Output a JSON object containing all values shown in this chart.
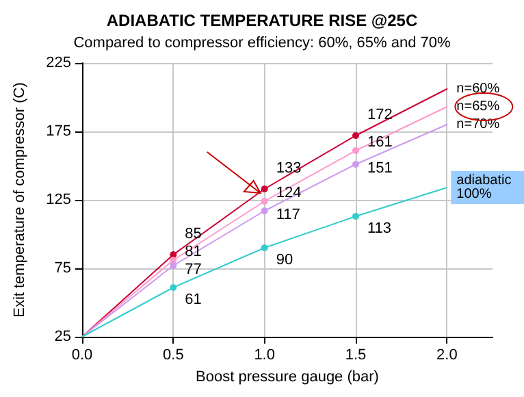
{
  "chart_data": {
    "type": "line",
    "title": "ADIABATIC TEMPERATURE RISE @25C",
    "subtitle": "Compared to compressor efficiency: 60%, 65% and 70%",
    "xlabel": "Boost pressure gauge (bar)",
    "ylabel": "Exit temperature of compressor (C)",
    "x": [
      0,
      0.5,
      1,
      1.5,
      2
    ],
    "series": [
      {
        "name": "n=60%",
        "color": "#cc0033",
        "values": [
          25,
          85,
          133,
          172,
          206
        ],
        "value_labels": [
          null,
          "85",
          "133",
          "172",
          null
        ]
      },
      {
        "name": "n=65%",
        "color": "#ff99cc",
        "values": [
          25,
          81,
          124,
          161,
          193
        ],
        "value_labels": [
          null,
          "81",
          "124",
          "161",
          null
        ]
      },
      {
        "name": "n=70%",
        "color": "#cc99ee",
        "values": [
          25,
          77,
          117,
          151,
          180
        ],
        "value_labels": [
          null,
          "77",
          "117",
          "151",
          null
        ]
      },
      {
        "name": "adiabatic 100%",
        "color": "#33cccc",
        "values": [
          25,
          61,
          90,
          113,
          134
        ],
        "value_labels": [
          null,
          "61",
          "90",
          "113",
          null
        ]
      }
    ],
    "xlim": [
      0,
      2.25
    ],
    "xticks": [
      {
        "value": 0,
        "label": "0.0"
      },
      {
        "value": 0.5,
        "label": "0.5"
      },
      {
        "value": 1,
        "label": "1.0"
      },
      {
        "value": 1.5,
        "label": "1.5"
      },
      {
        "value": 2,
        "label": "2.0"
      }
    ],
    "ylim": [
      25,
      225
    ],
    "yticks": [
      25,
      75,
      125,
      175,
      225
    ],
    "grid": true,
    "legend": false,
    "marker": "circle",
    "line_style": "solid"
  }
}
